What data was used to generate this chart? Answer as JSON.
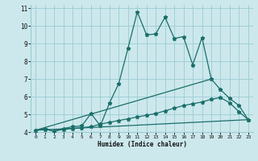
{
  "title": "",
  "xlabel": "Humidex (Indice chaleur)",
  "bg_color": "#cce8ec",
  "grid_color": "#99ccd4",
  "line_color": "#1a6e6a",
  "xlim": [
    -0.5,
    23.5
  ],
  "ylim": [
    4.0,
    11.2
  ],
  "xticks": [
    0,
    1,
    2,
    3,
    4,
    5,
    6,
    7,
    8,
    9,
    10,
    11,
    12,
    13,
    14,
    15,
    16,
    17,
    18,
    19,
    20,
    21,
    22,
    23
  ],
  "yticks": [
    4,
    5,
    6,
    7,
    8,
    9,
    10,
    11
  ],
  "line1_x": [
    0,
    1,
    2,
    3,
    4,
    5,
    6,
    7,
    8,
    9,
    10,
    11,
    12,
    13,
    14,
    15,
    16,
    17,
    18,
    19,
    20,
    21,
    22,
    23
  ],
  "line1_y": [
    4.1,
    4.2,
    4.05,
    4.2,
    4.3,
    4.35,
    5.05,
    4.35,
    5.65,
    6.75,
    8.75,
    10.8,
    9.5,
    9.55,
    10.5,
    9.3,
    9.4,
    7.8,
    9.35,
    7.0,
    6.4,
    5.9,
    5.5,
    4.7
  ],
  "line2_x": [
    0,
    1,
    2,
    3,
    4,
    5,
    6,
    7,
    8,
    9,
    10,
    11,
    12,
    13,
    14,
    15,
    16,
    17,
    18,
    19,
    20,
    21,
    22,
    23
  ],
  "line2_y": [
    4.1,
    4.15,
    4.05,
    4.15,
    4.2,
    4.25,
    4.3,
    4.45,
    4.55,
    4.65,
    4.75,
    4.85,
    4.95,
    5.05,
    5.2,
    5.35,
    5.5,
    5.6,
    5.7,
    5.85,
    5.95,
    5.65,
    5.15,
    4.7
  ],
  "line3_x": [
    0,
    23
  ],
  "line3_y": [
    4.1,
    4.7
  ],
  "line4_x": [
    0,
    19
  ],
  "line4_y": [
    4.1,
    7.0
  ]
}
